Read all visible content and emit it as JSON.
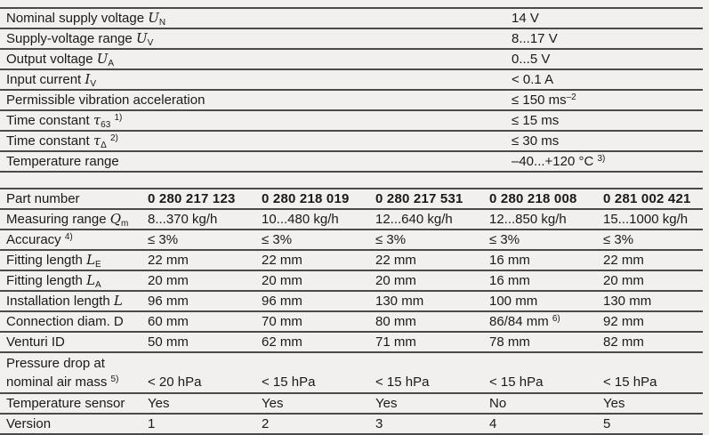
{
  "page": {
    "background_color": "#f1f0ee",
    "text_color": "#1a1a1a",
    "rule_color": "#4a4a4a"
  },
  "spec_table": {
    "rows": [
      {
        "label": [
          {
            "t": "Nominal supply voltage "
          },
          {
            "i": "U"
          },
          {
            "sub": "N"
          }
        ],
        "value": [
          {
            "t": "14 V"
          }
        ]
      },
      {
        "label": [
          {
            "t": "Supply-voltage range "
          },
          {
            "i": "U"
          },
          {
            "sub": "V"
          }
        ],
        "value": [
          {
            "t": "8...17 V"
          }
        ]
      },
      {
        "label": [
          {
            "t": "Output voltage "
          },
          {
            "i": "U"
          },
          {
            "sub": "A"
          }
        ],
        "value": [
          {
            "t": "0...5 V"
          }
        ]
      },
      {
        "label": [
          {
            "t": "Input current "
          },
          {
            "i": "I"
          },
          {
            "sub": "V"
          }
        ],
        "value": [
          {
            "t": "< 0.1 A"
          }
        ]
      },
      {
        "label": [
          {
            "t": "Permissible vibration acceleration"
          }
        ],
        "value": [
          {
            "t": "≤ 150 ms"
          },
          {
            "sup": "–2"
          }
        ]
      },
      {
        "label": [
          {
            "t": "Time constant "
          },
          {
            "i": "τ"
          },
          {
            "sub": "63"
          },
          {
            "t": " "
          },
          {
            "sup": "1)"
          }
        ],
        "value": [
          {
            "t": "≤ 15 ms"
          }
        ]
      },
      {
        "label": [
          {
            "t": "Time constant "
          },
          {
            "i": "τ"
          },
          {
            "sub": "Δ"
          },
          {
            "t": " "
          },
          {
            "sup": "2)"
          }
        ],
        "value": [
          {
            "t": "≤ 30 ms"
          }
        ]
      },
      {
        "label": [
          {
            "t": "Temperature range"
          }
        ],
        "value": [
          {
            "t": "–40...+120 °C "
          },
          {
            "sup": "3)"
          }
        ]
      }
    ]
  },
  "part_table": {
    "header": {
      "label": [
        {
          "t": "Part number"
        }
      ],
      "values": [
        [
          {
            "t": "0 280 217 123"
          }
        ],
        [
          {
            "t": "0 280 218 019"
          }
        ],
        [
          {
            "t": "0 280 217 531"
          }
        ],
        [
          {
            "t": "0 280 218 008"
          }
        ],
        [
          {
            "t": "0 281 002 421"
          }
        ]
      ]
    },
    "rows": [
      {
        "label": [
          {
            "t": "Measuring range "
          },
          {
            "i": "Q"
          },
          {
            "sub": "m"
          }
        ],
        "values": [
          [
            {
              "t": "8...370 kg/h"
            }
          ],
          [
            {
              "t": "10...480 kg/h"
            }
          ],
          [
            {
              "t": "12...640 kg/h"
            }
          ],
          [
            {
              "t": "12...850 kg/h"
            }
          ],
          [
            {
              "t": "15...1000 kg/h"
            }
          ]
        ]
      },
      {
        "label": [
          {
            "t": "Accuracy "
          },
          {
            "sup": "4)"
          }
        ],
        "values": [
          [
            {
              "t": "≤ 3%"
            }
          ],
          [
            {
              "t": "≤ 3%"
            }
          ],
          [
            {
              "t": "≤ 3%"
            }
          ],
          [
            {
              "t": "≤ 3%"
            }
          ],
          [
            {
              "t": "≤ 3%"
            }
          ]
        ]
      },
      {
        "label": [
          {
            "t": "Fitting length "
          },
          {
            "i": "L"
          },
          {
            "sub": "E"
          }
        ],
        "values": [
          [
            {
              "t": "22 mm"
            }
          ],
          [
            {
              "t": "22 mm"
            }
          ],
          [
            {
              "t": "22 mm"
            }
          ],
          [
            {
              "t": "16 mm"
            }
          ],
          [
            {
              "t": "22 mm"
            }
          ]
        ]
      },
      {
        "label": [
          {
            "t": "Fitting length "
          },
          {
            "i": "L"
          },
          {
            "sub": "A"
          }
        ],
        "values": [
          [
            {
              "t": "20 mm"
            }
          ],
          [
            {
              "t": "20 mm"
            }
          ],
          [
            {
              "t": "20 mm"
            }
          ],
          [
            {
              "t": "16 mm"
            }
          ],
          [
            {
              "t": "20 mm"
            }
          ]
        ]
      },
      {
        "label": [
          {
            "t": "Installation length "
          },
          {
            "i": "L"
          }
        ],
        "values": [
          [
            {
              "t": "96 mm"
            }
          ],
          [
            {
              "t": "96 mm"
            }
          ],
          [
            {
              "t": "130 mm"
            }
          ],
          [
            {
              "t": "100 mm"
            }
          ],
          [
            {
              "t": "130 mm"
            }
          ]
        ]
      },
      {
        "label": [
          {
            "t": "Connection diam. D"
          }
        ],
        "values": [
          [
            {
              "t": "60 mm"
            }
          ],
          [
            {
              "t": "70 mm"
            }
          ],
          [
            {
              "t": "80 mm"
            }
          ],
          [
            {
              "t": "86/84 mm "
            },
            {
              "sup": "6)"
            }
          ],
          [
            {
              "t": "92 mm"
            }
          ]
        ]
      },
      {
        "label": [
          {
            "t": "Venturi ID"
          }
        ],
        "values": [
          [
            {
              "t": "50 mm"
            }
          ],
          [
            {
              "t": "62 mm"
            }
          ],
          [
            {
              "t": "71 mm"
            }
          ],
          [
            {
              "t": "78 mm"
            }
          ],
          [
            {
              "t": "82 mm"
            }
          ]
        ]
      },
      {
        "label": [
          {
            "t": "Pressure drop at"
          },
          {
            "br": ""
          },
          {
            "t": "nominal air mass "
          },
          {
            "sup": "5)"
          }
        ],
        "values": [
          [
            {
              "t": "< 20 hPa"
            }
          ],
          [
            {
              "t": "< 15 hPa"
            }
          ],
          [
            {
              "t": "< 15 hPa"
            }
          ],
          [
            {
              "t": "< 15 hPa"
            }
          ],
          [
            {
              "t": "< 15 hPa"
            }
          ]
        ]
      },
      {
        "label": [
          {
            "t": "Temperature sensor"
          }
        ],
        "values": [
          [
            {
              "t": "Yes"
            }
          ],
          [
            {
              "t": "Yes"
            }
          ],
          [
            {
              "t": "Yes"
            }
          ],
          [
            {
              "t": "No"
            }
          ],
          [
            {
              "t": "Yes"
            }
          ]
        ]
      },
      {
        "label": [
          {
            "t": "Version"
          }
        ],
        "values": [
          [
            {
              "t": "1"
            }
          ],
          [
            {
              "t": "2"
            }
          ],
          [
            {
              "t": "3"
            }
          ],
          [
            {
              "t": "4"
            }
          ],
          [
            {
              "t": "5"
            }
          ]
        ]
      }
    ]
  }
}
